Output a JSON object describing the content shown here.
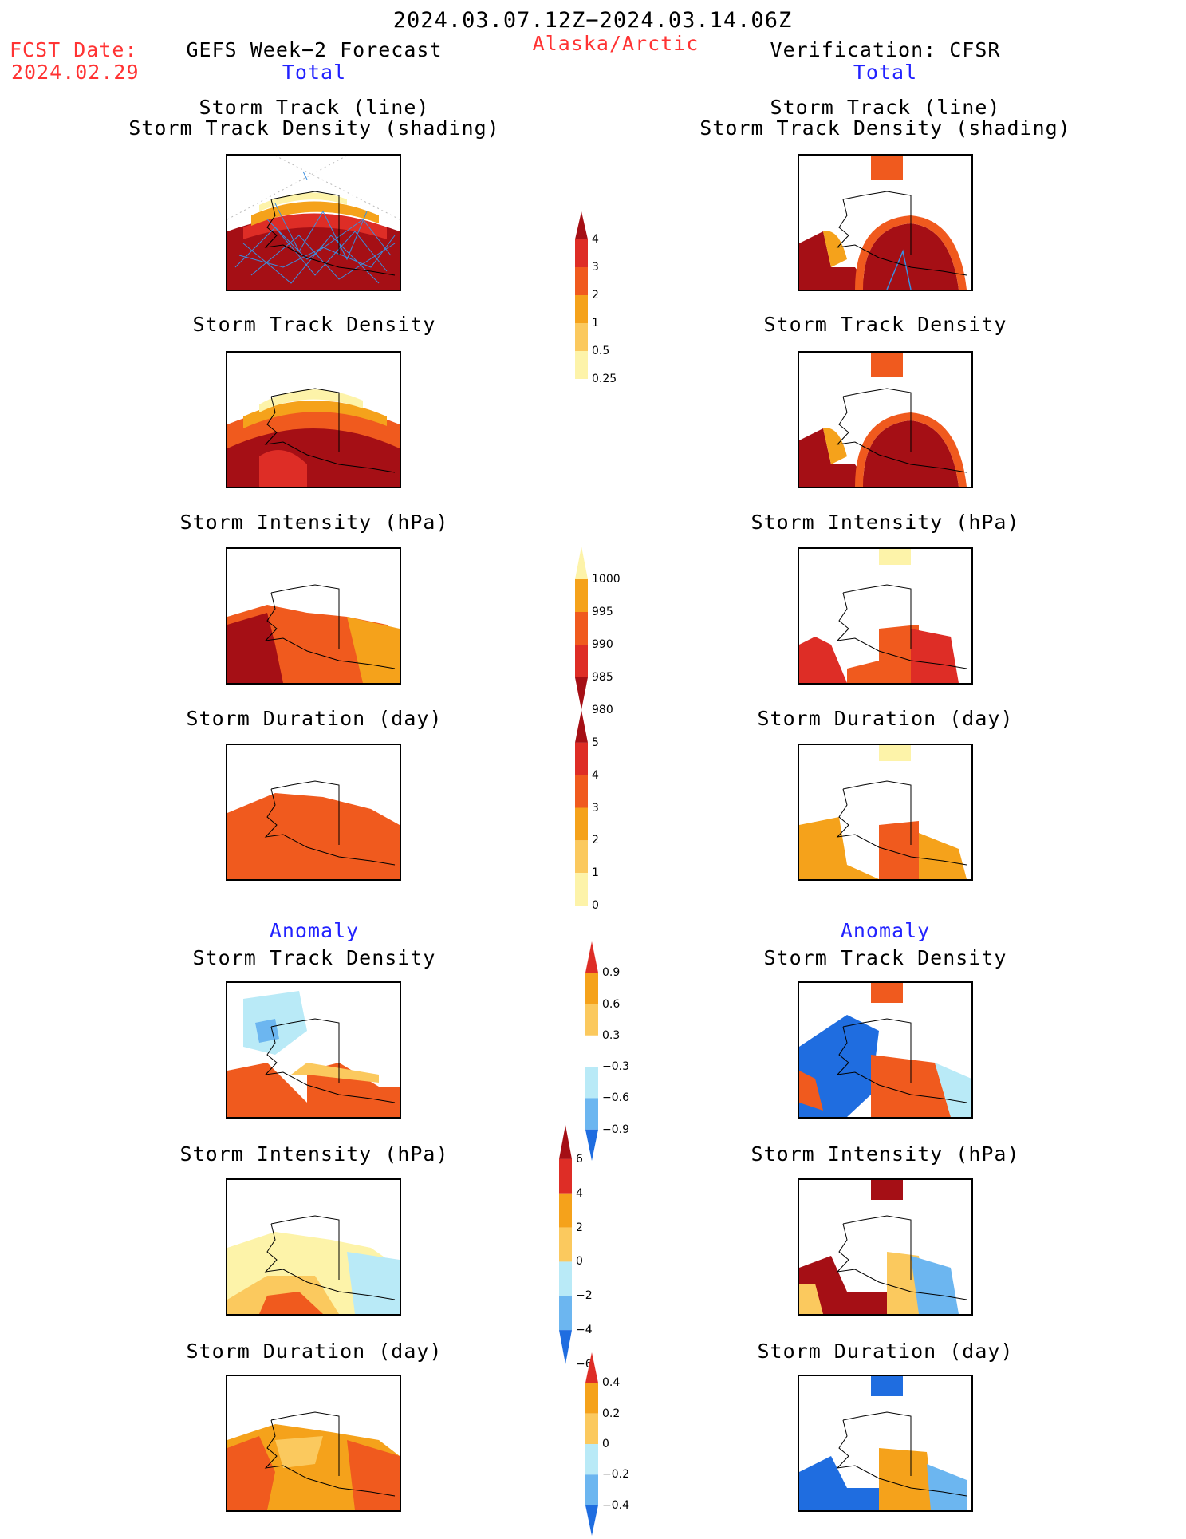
{
  "header": {
    "period": "2024.03.07.12Z−2024.03.14.06Z",
    "region": "Alaska/Arctic",
    "fcst_date_label": "FCST Date:",
    "fcst_date_value": "2024.02.29",
    "left_model": "GEFS Week−2 Forecast",
    "right_model": "Verification: CFSR",
    "left_total": "Total",
    "right_total": "Total",
    "left_anomaly": "Anomaly",
    "right_anomaly": "Anomaly"
  },
  "panels": {
    "storm_track_line": "Storm Track (line)",
    "storm_track_shading": "Storm Track Density (shading)",
    "storm_track_density": "Storm Track Density",
    "storm_intensity": "Storm Intensity (hPa)",
    "storm_duration": "Storm Duration (day)"
  },
  "colorbars": {
    "density": [
      "4",
      "3",
      "2",
      "1",
      "0.5",
      "0.25"
    ],
    "intensity": [
      "1000",
      "995",
      "990",
      "985",
      "980"
    ],
    "duration": [
      "5",
      "4",
      "3",
      "2",
      "1",
      "0"
    ],
    "anom_density": [
      "0.9",
      "0.6",
      "0.3",
      "−0.3",
      "−0.6",
      "−0.9"
    ],
    "anom_intensity": [
      "6",
      "4",
      "2",
      "0",
      "−2",
      "−4",
      "−6"
    ],
    "anom_duration": [
      "0.4",
      "0.2",
      "0",
      "−0.2",
      "−0.4"
    ]
  },
  "colors": {
    "dark_red": "#a50f15",
    "red": "#de2d26",
    "orange_red": "#f05a1e",
    "orange": "#f5a21b",
    "light_orange": "#fbc95e",
    "pale_yellow": "#fdf3a9",
    "light_blue": "#b9eaf7",
    "mid_blue": "#6cb6f0",
    "blue": "#1f6de0",
    "track_blue": "#3b8ee0"
  }
}
